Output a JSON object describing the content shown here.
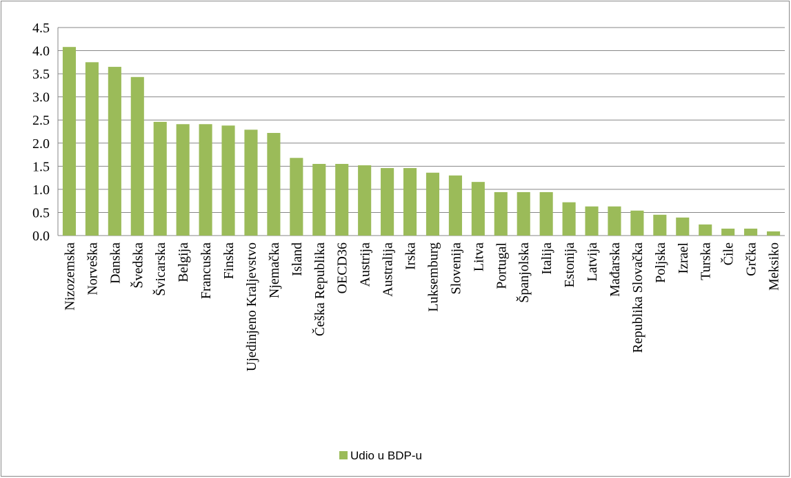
{
  "chart_data": {
    "type": "bar",
    "categories": [
      "Nizozemska",
      "Norveška",
      "Danska",
      "Švedska",
      "Švicarska",
      "Belgija",
      "Francuska",
      "Finska",
      "Ujedinjeno Kraljevstvo",
      "Njemačka",
      "Island",
      "Češka Republika",
      "OECD36",
      "Austrija",
      "Australija",
      "Irska",
      "Luksemburg",
      "Slovenija",
      "Litva",
      "Portugal",
      "Španjolska",
      "Italija",
      "Estonija",
      "Latvija",
      "Mađarska",
      "Republika Slovačka",
      "Poljska",
      "Izrael",
      "Turska",
      "Čile",
      "Grčka",
      "Meksiko"
    ],
    "series": [
      {
        "name": "Udio u BDP-u",
        "color": "#9bbb59",
        "values": [
          4.08,
          3.75,
          3.65,
          3.43,
          2.46,
          2.41,
          2.41,
          2.38,
          2.29,
          2.22,
          1.68,
          1.55,
          1.55,
          1.52,
          1.46,
          1.46,
          1.36,
          1.3,
          1.16,
          0.94,
          0.94,
          0.94,
          0.72,
          0.63,
          0.63,
          0.54,
          0.45,
          0.39,
          0.24,
          0.15,
          0.15,
          0.09
        ]
      }
    ],
    "ylim": [
      0,
      4.5
    ],
    "yticks": [
      {
        "value": 0,
        "label": "0.0"
      },
      0.5,
      {
        "value": 1,
        "label": "1.0"
      },
      1.5,
      {
        "value": 2,
        "label": "2.0"
      },
      2.5,
      {
        "value": 3,
        "label": "3.0"
      },
      3.5,
      {
        "value": 4,
        "label": "4.0"
      },
      4.5
    ],
    "grid": true,
    "legend": "bottom"
  }
}
